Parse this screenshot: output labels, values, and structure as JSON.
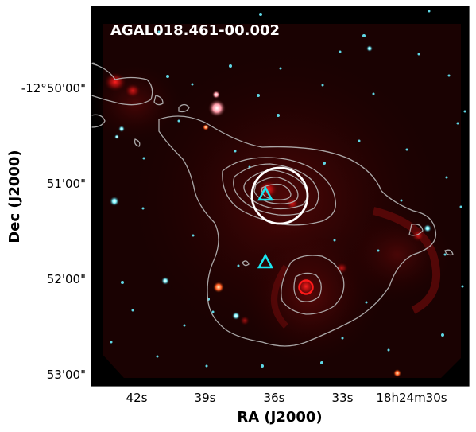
{
  "figure": {
    "title": "AGAL018.461-00.002",
    "xlabel": "RA (J2000)",
    "ylabel": "Dec (J2000)",
    "x_ticks": [
      "42s",
      "39s",
      "36s",
      "33s",
      "18h24m30s"
    ],
    "y_ticks": [
      "-12°50'00\"",
      "51'00\"",
      "52'00\"",
      "53'00\""
    ],
    "colors": {
      "background": "#000000",
      "contour": "#b8b8b8",
      "beam_circle": "#ffffff",
      "triangle_marker": "#19e6f0",
      "red_marker": "#ff1a1a",
      "title_text": "#ffffff"
    },
    "markers": [
      {
        "kind": "circle",
        "color": "white",
        "meaning": "source beam"
      },
      {
        "kind": "triangle",
        "color": "cyan"
      },
      {
        "kind": "triangle",
        "color": "cyan"
      },
      {
        "kind": "circle",
        "color": "red"
      }
    ]
  }
}
